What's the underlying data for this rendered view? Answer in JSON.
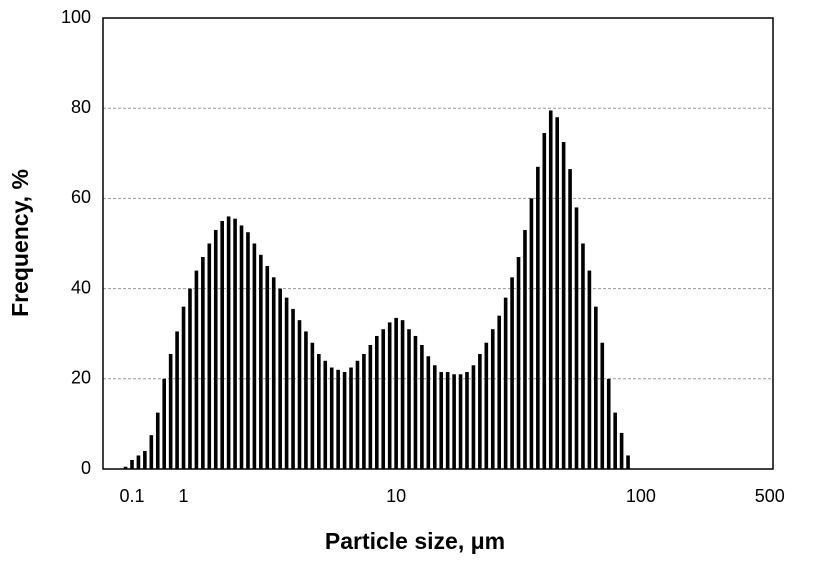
{
  "chart_data": {
    "type": "bar",
    "xlabel": "Particle size, μm",
    "ylabel": "Frequency, %",
    "categories": [
      null,
      null,
      null,
      null,
      "0.1",
      null,
      null,
      null,
      null,
      null,
      null,
      null,
      "1",
      null,
      null,
      null,
      null,
      null,
      null,
      null,
      null,
      null,
      null,
      null,
      null,
      null,
      null,
      null,
      null,
      null,
      null,
      null,
      null,
      null,
      null,
      null,
      null,
      null,
      null,
      null,
      null,
      null,
      null,
      null,
      null,
      "10",
      null,
      null,
      null,
      null,
      null,
      null,
      null,
      null,
      null,
      null,
      null,
      null,
      null,
      null,
      null,
      null,
      null,
      null,
      null,
      null,
      null,
      null,
      null,
      null,
      null,
      null,
      null,
      null,
      null,
      null,
      null,
      null,
      null,
      null,
      null,
      null,
      null,
      "100",
      null,
      null,
      null,
      null,
      null,
      null,
      null,
      null,
      null,
      null,
      null,
      null,
      null,
      null,
      null,
      null,
      null,
      null,
      null,
      "500"
    ],
    "values": [
      null,
      null,
      null,
      0.5,
      2,
      3,
      4,
      7.5,
      12.5,
      20,
      25.5,
      30.5,
      36,
      40,
      44,
      47,
      50,
      53,
      55,
      56,
      55.5,
      54,
      52.5,
      50,
      47.5,
      45,
      42.5,
      40,
      38,
      35.5,
      33,
      30.5,
      28,
      25.5,
      24,
      22.5,
      22,
      21.5,
      22.5,
      24,
      25.5,
      27.5,
      29.5,
      31,
      32.5,
      33.5,
      33,
      31,
      29.5,
      27.5,
      25,
      23,
      21.5,
      21.5,
      21,
      21,
      21.5,
      23,
      25.5,
      28,
      31,
      34,
      38,
      42.5,
      47,
      53,
      60,
      67,
      74.5,
      79.5,
      78,
      72.5,
      66.5,
      58,
      50,
      44,
      36,
      28,
      20,
      12.5,
      8,
      3,
      null,
      null,
      null,
      null,
      null,
      null,
      null,
      null,
      null,
      null,
      null,
      null,
      null,
      null,
      null,
      null,
      null,
      null,
      null,
      null,
      null,
      null
    ],
    "color": "#000000",
    "ylim": [
      0,
      100
    ],
    "yticks": [
      0,
      20,
      40,
      60,
      80,
      100
    ],
    "grid": true
  }
}
